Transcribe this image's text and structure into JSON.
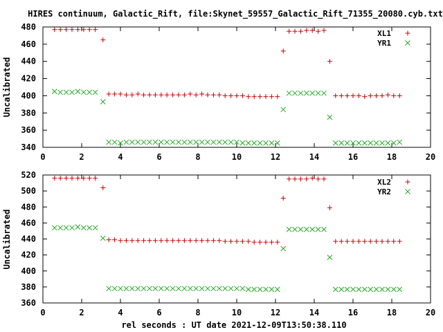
{
  "title": "HIRES continuum, Galactic_Rift, file:Skynet_59557_Galactic_Rift_71355_20080.cyb.txt",
  "xlabel": "rel seconds : UT date 2021-12-09T13:50:38.110",
  "colors": {
    "series1": "#cc0000",
    "series2": "#22aa22"
  },
  "chart_data": [
    {
      "type": "scatter",
      "ylabel": "Uncalibrated",
      "xlim": [
        0,
        20
      ],
      "ylim": [
        340,
        480
      ],
      "xticks": [
        0,
        2,
        4,
        6,
        8,
        10,
        12,
        14,
        16,
        18,
        20
      ],
      "yticks": [
        340,
        360,
        380,
        400,
        420,
        440,
        460,
        480
      ],
      "legend_position": "top-right",
      "series": [
        {
          "name": "XL1",
          "marker": "plus",
          "color": "#cc0000",
          "points": [
            [
              0.6,
              477
            ],
            [
              0.9,
              477
            ],
            [
              1.2,
              477
            ],
            [
              1.5,
              477
            ],
            [
              1.8,
              477
            ],
            [
              2.1,
              477
            ],
            [
              2.4,
              477
            ],
            [
              2.7,
              477
            ],
            [
              3.1,
              465
            ],
            [
              3.4,
              402
            ],
            [
              3.7,
              402
            ],
            [
              4.0,
              402
            ],
            [
              4.3,
              401
            ],
            [
              4.6,
              401
            ],
            [
              4.9,
              402
            ],
            [
              5.2,
              401
            ],
            [
              5.5,
              401
            ],
            [
              5.8,
              401
            ],
            [
              6.1,
              401
            ],
            [
              6.4,
              401
            ],
            [
              6.7,
              401
            ],
            [
              7.0,
              401
            ],
            [
              7.3,
              401
            ],
            [
              7.6,
              402
            ],
            [
              7.9,
              401
            ],
            [
              8.2,
              402
            ],
            [
              8.5,
              401
            ],
            [
              8.8,
              401
            ],
            [
              9.1,
              401
            ],
            [
              9.4,
              400
            ],
            [
              9.7,
              400
            ],
            [
              10.0,
              400
            ],
            [
              10.3,
              400
            ],
            [
              10.6,
              399
            ],
            [
              10.9,
              399
            ],
            [
              11.2,
              399
            ],
            [
              11.5,
              399
            ],
            [
              11.8,
              399
            ],
            [
              12.1,
              399
            ],
            [
              12.4,
              452
            ],
            [
              12.7,
              475
            ],
            [
              13.0,
              475
            ],
            [
              13.3,
              475
            ],
            [
              13.6,
              476
            ],
            [
              13.9,
              476
            ],
            [
              14.2,
              475
            ],
            [
              14.5,
              476
            ],
            [
              14.8,
              440
            ],
            [
              15.1,
              400
            ],
            [
              15.4,
              400
            ],
            [
              15.7,
              400
            ],
            [
              16.0,
              400
            ],
            [
              16.3,
              400
            ],
            [
              16.6,
              399
            ],
            [
              16.9,
              400
            ],
            [
              17.2,
              400
            ],
            [
              17.5,
              400
            ],
            [
              17.8,
              401
            ],
            [
              18.1,
              400
            ],
            [
              18.4,
              400
            ]
          ]
        },
        {
          "name": "YR1",
          "marker": "cross",
          "color": "#22aa22",
          "points": [
            [
              0.6,
              405
            ],
            [
              0.9,
              404
            ],
            [
              1.2,
              404
            ],
            [
              1.5,
              404
            ],
            [
              1.8,
              405
            ],
            [
              2.1,
              404
            ],
            [
              2.4,
              404
            ],
            [
              2.7,
              404
            ],
            [
              3.1,
              393
            ],
            [
              3.4,
              346
            ],
            [
              3.7,
              346
            ],
            [
              4.0,
              345
            ],
            [
              4.3,
              346
            ],
            [
              4.6,
              346
            ],
            [
              4.9,
              346
            ],
            [
              5.2,
              346
            ],
            [
              5.5,
              346
            ],
            [
              5.8,
              346
            ],
            [
              6.1,
              346
            ],
            [
              6.4,
              346
            ],
            [
              6.7,
              346
            ],
            [
              7.0,
              346
            ],
            [
              7.3,
              346
            ],
            [
              7.6,
              346
            ],
            [
              7.9,
              346
            ],
            [
              8.2,
              346
            ],
            [
              8.5,
              346
            ],
            [
              8.8,
              346
            ],
            [
              9.1,
              346
            ],
            [
              9.4,
              346
            ],
            [
              9.7,
              346
            ],
            [
              10.0,
              346
            ],
            [
              10.3,
              345
            ],
            [
              10.6,
              345
            ],
            [
              10.9,
              345
            ],
            [
              11.2,
              345
            ],
            [
              11.5,
              345
            ],
            [
              11.8,
              345
            ],
            [
              12.1,
              345
            ],
            [
              12.4,
              384
            ],
            [
              12.7,
              403
            ],
            [
              13.0,
              403
            ],
            [
              13.3,
              403
            ],
            [
              13.6,
              403
            ],
            [
              13.9,
              403
            ],
            [
              14.2,
              403
            ],
            [
              14.5,
              403
            ],
            [
              14.8,
              375
            ],
            [
              15.1,
              345
            ],
            [
              15.4,
              345
            ],
            [
              15.7,
              345
            ],
            [
              16.0,
              345
            ],
            [
              16.3,
              345
            ],
            [
              16.6,
              345
            ],
            [
              16.9,
              345
            ],
            [
              17.2,
              345
            ],
            [
              17.5,
              345
            ],
            [
              17.8,
              345
            ],
            [
              18.1,
              345
            ],
            [
              18.4,
              346
            ]
          ]
        }
      ]
    },
    {
      "type": "scatter",
      "ylabel": "Uncalibrated",
      "xlim": [
        0,
        20
      ],
      "ylim": [
        360,
        520
      ],
      "xticks": [
        0,
        2,
        4,
        6,
        8,
        10,
        12,
        14,
        16,
        18,
        20
      ],
      "yticks": [
        360,
        380,
        400,
        420,
        440,
        460,
        480,
        500,
        520
      ],
      "legend_position": "top-right",
      "series": [
        {
          "name": "XL2",
          "marker": "plus",
          "color": "#cc0000",
          "points": [
            [
              0.6,
              516
            ],
            [
              0.9,
              516
            ],
            [
              1.2,
              516
            ],
            [
              1.5,
              516
            ],
            [
              1.8,
              516
            ],
            [
              2.1,
              516
            ],
            [
              2.4,
              516
            ],
            [
              2.7,
              516
            ],
            [
              3.1,
              504
            ],
            [
              3.4,
              439
            ],
            [
              3.7,
              439
            ],
            [
              4.0,
              438
            ],
            [
              4.3,
              438
            ],
            [
              4.6,
              438
            ],
            [
              4.9,
              438
            ],
            [
              5.2,
              438
            ],
            [
              5.5,
              438
            ],
            [
              5.8,
              438
            ],
            [
              6.1,
              438
            ],
            [
              6.4,
              438
            ],
            [
              6.7,
              438
            ],
            [
              7.0,
              438
            ],
            [
              7.3,
              438
            ],
            [
              7.6,
              438
            ],
            [
              7.9,
              438
            ],
            [
              8.2,
              438
            ],
            [
              8.5,
              438
            ],
            [
              8.8,
              438
            ],
            [
              9.1,
              438
            ],
            [
              9.4,
              437
            ],
            [
              9.7,
              437
            ],
            [
              10.0,
              437
            ],
            [
              10.3,
              437
            ],
            [
              10.6,
              437
            ],
            [
              10.9,
              436
            ],
            [
              11.2,
              436
            ],
            [
              11.5,
              436
            ],
            [
              11.8,
              436
            ],
            [
              12.1,
              436
            ],
            [
              12.4,
              491
            ],
            [
              12.7,
              515
            ],
            [
              13.0,
              515
            ],
            [
              13.3,
              515
            ],
            [
              13.6,
              515
            ],
            [
              13.9,
              516
            ],
            [
              14.2,
              515
            ],
            [
              14.5,
              515
            ],
            [
              14.8,
              479
            ],
            [
              15.1,
              437
            ],
            [
              15.4,
              437
            ],
            [
              15.7,
              437
            ],
            [
              16.0,
              437
            ],
            [
              16.3,
              437
            ],
            [
              16.6,
              437
            ],
            [
              16.9,
              437
            ],
            [
              17.2,
              437
            ],
            [
              17.5,
              437
            ],
            [
              17.8,
              437
            ],
            [
              18.1,
              437
            ],
            [
              18.4,
              437
            ]
          ]
        },
        {
          "name": "YR2",
          "marker": "cross",
          "color": "#22aa22",
          "points": [
            [
              0.6,
              454
            ],
            [
              0.9,
              454
            ],
            [
              1.2,
              454
            ],
            [
              1.5,
              454
            ],
            [
              1.8,
              455
            ],
            [
              2.1,
              454
            ],
            [
              2.4,
              454
            ],
            [
              2.7,
              454
            ],
            [
              3.1,
              441
            ],
            [
              3.4,
              378
            ],
            [
              3.7,
              378
            ],
            [
              4.0,
              378
            ],
            [
              4.3,
              378
            ],
            [
              4.6,
              378
            ],
            [
              4.9,
              378
            ],
            [
              5.2,
              378
            ],
            [
              5.5,
              378
            ],
            [
              5.8,
              378
            ],
            [
              6.1,
              378
            ],
            [
              6.4,
              378
            ],
            [
              6.7,
              378
            ],
            [
              7.0,
              378
            ],
            [
              7.3,
              378
            ],
            [
              7.6,
              378
            ],
            [
              7.9,
              378
            ],
            [
              8.2,
              378
            ],
            [
              8.5,
              378
            ],
            [
              8.8,
              378
            ],
            [
              9.1,
              378
            ],
            [
              9.4,
              378
            ],
            [
              9.7,
              378
            ],
            [
              10.0,
              378
            ],
            [
              10.3,
              378
            ],
            [
              10.6,
              377
            ],
            [
              10.9,
              377
            ],
            [
              11.2,
              377
            ],
            [
              11.5,
              377
            ],
            [
              11.8,
              377
            ],
            [
              12.1,
              377
            ],
            [
              12.4,
              428
            ],
            [
              12.7,
              452
            ],
            [
              13.0,
              452
            ],
            [
              13.3,
              452
            ],
            [
              13.6,
              452
            ],
            [
              13.9,
              452
            ],
            [
              14.2,
              452
            ],
            [
              14.5,
              452
            ],
            [
              14.8,
              417
            ],
            [
              15.1,
              377
            ],
            [
              15.4,
              377
            ],
            [
              15.7,
              377
            ],
            [
              16.0,
              377
            ],
            [
              16.3,
              377
            ],
            [
              16.6,
              377
            ],
            [
              16.9,
              377
            ],
            [
              17.2,
              377
            ],
            [
              17.5,
              377
            ],
            [
              17.8,
              377
            ],
            [
              18.1,
              377
            ],
            [
              18.4,
              377
            ]
          ]
        }
      ]
    }
  ]
}
